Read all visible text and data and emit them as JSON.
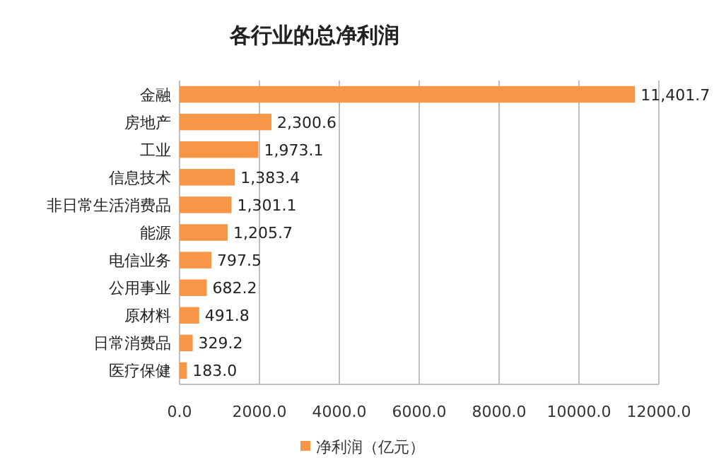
{
  "chart_data": {
    "type": "bar",
    "orientation": "horizontal",
    "title": "各行业的总净利润",
    "categories": [
      "金融",
      "房地产",
      "工业",
      "信息技术",
      "非日常生活消费品",
      "能源",
      "电信业务",
      "公用事业",
      "原材料",
      "日常消费品",
      "医疗保健"
    ],
    "series": [
      {
        "name": "净利润（亿元）",
        "color": "#f79646",
        "values": [
          11401.7,
          2300.6,
          1973.1,
          1383.4,
          1301.1,
          1205.7,
          797.5,
          682.2,
          491.8,
          329.2,
          183.0
        ]
      }
    ],
    "value_labels": [
      "11,401.7",
      "2,300.6",
      "1,973.1",
      "1,383.4",
      "1,301.1",
      "1,205.7",
      "797.5",
      "682.2",
      "491.8",
      "329.2",
      "183.0"
    ],
    "xlim": [
      0,
      12000
    ],
    "xticks": [
      {
        "value": 0,
        "label": "0.0"
      },
      {
        "value": 2000,
        "label": "2000.0"
      },
      {
        "value": 4000,
        "label": "4000.0"
      },
      {
        "value": 6000,
        "label": "6000.0"
      },
      {
        "value": 8000,
        "label": "8000.0"
      },
      {
        "value": 10000,
        "label": "10000.0"
      },
      {
        "value": 12000,
        "label": "12000.0"
      }
    ],
    "grid": "x",
    "legend": "bottom"
  }
}
